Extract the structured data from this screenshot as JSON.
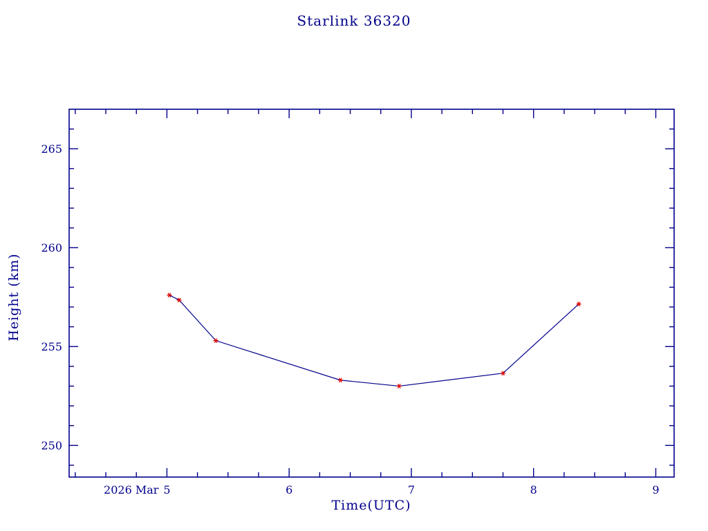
{
  "chart_data": {
    "type": "line",
    "title": "Starlink 36320",
    "xlabel": "Time(UTC)",
    "ylabel": "Height (km)",
    "x": [
      5.02,
      5.1,
      5.4,
      6.42,
      6.9,
      7.75,
      8.37
    ],
    "y": [
      257.6,
      257.35,
      255.3,
      253.3,
      253.0,
      253.65,
      257.15
    ],
    "xlim": [
      4.2,
      9.15
    ],
    "ylim": [
      248.4,
      267.0
    ],
    "xticks": [
      {
        "value": 5,
        "label": "5",
        "prefix": "2026 Mar"
      },
      {
        "value": 6,
        "label": "6"
      },
      {
        "value": 7,
        "label": "7"
      },
      {
        "value": 8,
        "label": "8"
      },
      {
        "value": 9,
        "label": "9"
      }
    ],
    "yticks": [
      250,
      255,
      260,
      265
    ],
    "minor_x_step": 0.25,
    "minor_y_step": 1,
    "grid": false,
    "legend": "none",
    "colors": {
      "axis": "#00008b",
      "text": "#00008b",
      "line": "#00008b",
      "marker": "#dd0000"
    }
  }
}
